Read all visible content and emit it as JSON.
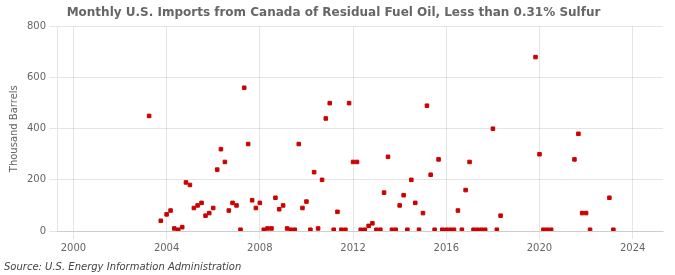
{
  "chart_data": {
    "type": "scatter",
    "title": "Monthly U.S. Imports from Canada of Residual Fuel Oil, Less than 0.31% Sulfur",
    "ylabel": "Thousand Barrels",
    "annotations": [
      "Source: U.S. Energy Information Administration"
    ],
    "color": "#cc0000",
    "marker": "square",
    "grid": true,
    "xlim": [
      1999.3,
      2025.3
    ],
    "xticks": [
      2000,
      2004,
      2008,
      2012,
      2016,
      2020,
      2024
    ],
    "ylim": [
      0,
      800
    ],
    "yticks": [
      0,
      200,
      400,
      600,
      800
    ],
    "x": [
      2003.25,
      2003.75,
      2004.0,
      2004.17,
      2004.33,
      2004.5,
      2004.67,
      2004.83,
      2005.0,
      2005.17,
      2005.33,
      2005.5,
      2005.67,
      2005.83,
      2006.0,
      2006.17,
      2006.33,
      2006.5,
      2006.67,
      2006.83,
      2007.0,
      2007.17,
      2007.33,
      2007.5,
      2007.67,
      2007.83,
      2008.0,
      2008.17,
      2008.33,
      2008.5,
      2008.67,
      2008.83,
      2009.0,
      2009.17,
      2009.33,
      2009.5,
      2009.67,
      2009.83,
      2010.0,
      2010.17,
      2010.33,
      2010.5,
      2010.67,
      2010.83,
      2011.0,
      2011.17,
      2011.33,
      2011.5,
      2011.67,
      2011.83,
      2012.0,
      2012.17,
      2012.33,
      2012.5,
      2012.67,
      2012.83,
      2013.0,
      2013.17,
      2013.33,
      2013.5,
      2013.67,
      2013.83,
      2014.0,
      2014.17,
      2014.33,
      2014.5,
      2014.67,
      2014.83,
      2015.0,
      2015.17,
      2015.33,
      2015.5,
      2015.67,
      2015.83,
      2016.0,
      2016.17,
      2016.33,
      2016.5,
      2016.67,
      2016.83,
      2017.0,
      2017.17,
      2017.33,
      2017.5,
      2017.67,
      2018.0,
      2018.17,
      2018.33,
      2019.83,
      2020.0,
      2020.17,
      2020.33,
      2020.5,
      2021.5,
      2021.67,
      2021.83,
      2022.0,
      2022.17,
      2023.0,
      2023.17
    ],
    "values": [
      450,
      40,
      65,
      80,
      10,
      5,
      15,
      190,
      180,
      90,
      100,
      110,
      60,
      70,
      90,
      240,
      320,
      270,
      80,
      110,
      100,
      5,
      560,
      340,
      120,
      90,
      110,
      5,
      10,
      10,
      130,
      85,
      100,
      10,
      5,
      5,
      340,
      90,
      115,
      5,
      230,
      10,
      200,
      440,
      500,
      5,
      75,
      5,
      5,
      500,
      270,
      270,
      5,
      5,
      20,
      30,
      5,
      5,
      150,
      290,
      5,
      5,
      100,
      140,
      5,
      200,
      110,
      5,
      70,
      490,
      220,
      5,
      280,
      5,
      5,
      5,
      5,
      80,
      5,
      160,
      270,
      5,
      5,
      5,
      5,
      400,
      5,
      60,
      680,
      300,
      5,
      5,
      5,
      280,
      380,
      70,
      70,
      5,
      130,
      5
    ]
  }
}
